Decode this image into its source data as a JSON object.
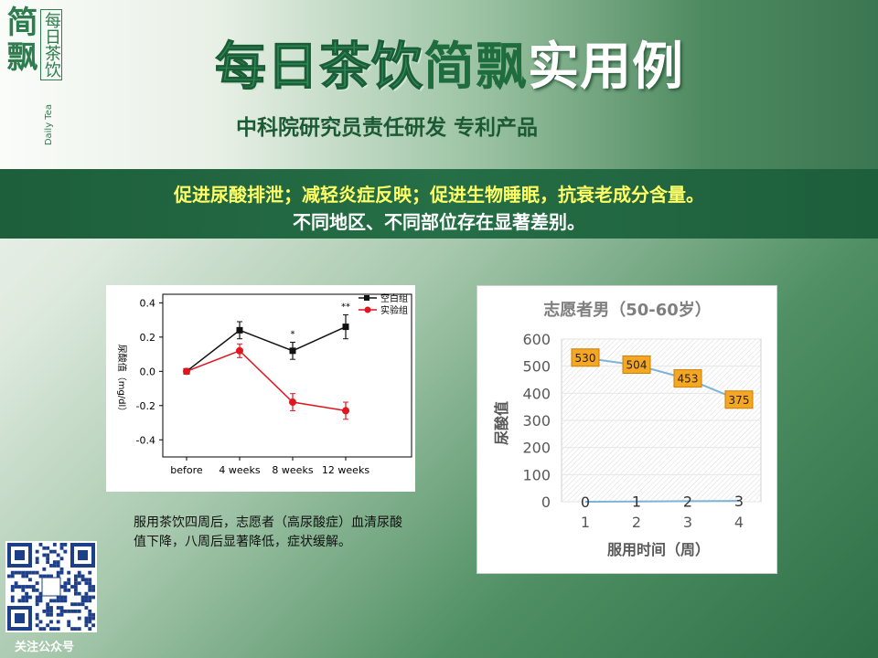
{
  "header": {
    "logo_main": "简飘",
    "logo_sub": "每日茶饮",
    "logo_en": "Daily Tea",
    "title_part1": "每日茶饮",
    "title_part2": "简飘",
    "title_part3": "实用例",
    "subtitle": "中科院研究员责任研发 专利产品"
  },
  "banner": {
    "line1": "促进尿酸排泄；减轻炎症反映；促进生物睡眠，抗衰老成分含量。",
    "line2": "不同地区、不同部位存在显著差别。"
  },
  "caption": "服用茶饮四周后，志愿者（高尿酸症）血清尿酸值下降，八周后显著降低，症状缓解。",
  "qr": {
    "label": "关注公众号"
  },
  "colors": {
    "control": "#111111",
    "experiment": "#e1141f",
    "line2": "#7fb3d5",
    "label_fill": "#f5a623"
  },
  "chart_data": [
    {
      "type": "line",
      "categories": [
        "before",
        "4 weeks",
        "8 weeks",
        "12 weeks"
      ],
      "ylabel": "尿酸值（mg/dl）",
      "ylim": [
        -0.5,
        0.45
      ],
      "yticks": [
        "0.4",
        "0.2",
        "0.0",
        "-0.2",
        "-0.4"
      ],
      "series": [
        {
          "name": "空白组",
          "values": [
            0.0,
            0.24,
            0.12,
            0.26
          ],
          "errors": [
            0.0,
            0.05,
            0.05,
            0.07
          ],
          "significance": [
            "",
            "",
            "*",
            "**"
          ]
        },
        {
          "name": "实验组",
          "values": [
            0.0,
            0.12,
            -0.18,
            -0.23
          ],
          "errors": [
            0.0,
            0.04,
            0.05,
            0.05
          ]
        }
      ]
    },
    {
      "type": "line",
      "title": "志愿者男（50-60岁）",
      "xlabel": "服用时间（周）",
      "ylabel": "尿酸值",
      "x": [
        "1",
        "2",
        "3",
        "4"
      ],
      "ylim": [
        0,
        600
      ],
      "yticks": [
        "600",
        "500",
        "400",
        "300",
        "200",
        "100",
        "0"
      ],
      "series": [
        {
          "values": [
            530,
            504,
            453,
            375
          ],
          "labels": [
            "530",
            "504",
            "453",
            "375"
          ]
        },
        {
          "values": [
            0,
            1,
            2,
            3
          ],
          "labels": [
            "0",
            "1",
            "2",
            "3"
          ]
        }
      ]
    }
  ]
}
